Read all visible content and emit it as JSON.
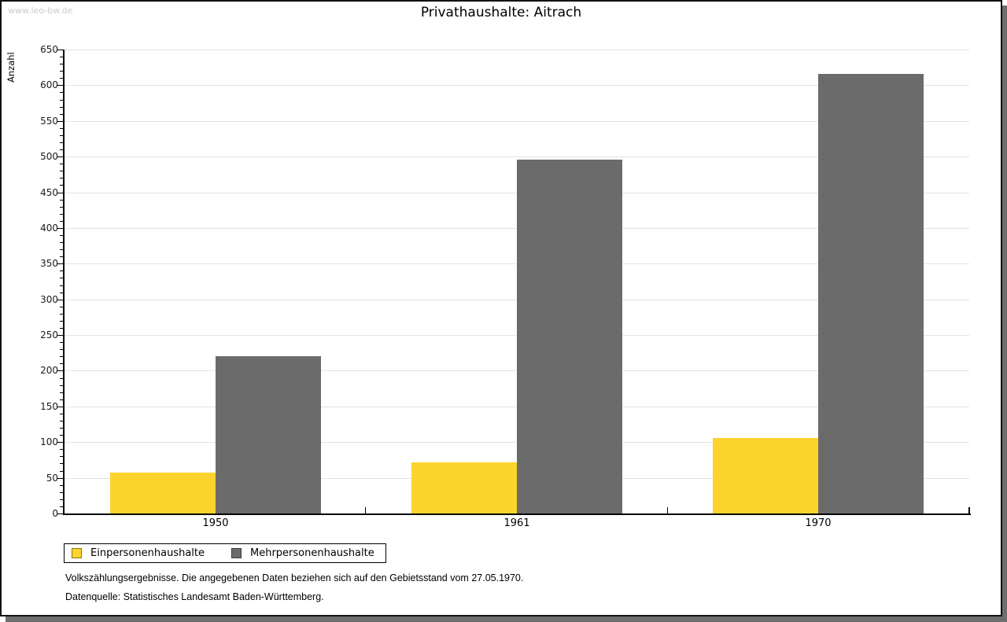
{
  "watermark": "www.leo-bw.de",
  "title": "Privathaushalte: Aitrach",
  "chart_data": {
    "type": "bar",
    "title": "Privathaushalte: Aitrach",
    "categories": [
      "1950",
      "1961",
      "1970"
    ],
    "series": [
      {
        "name": "Einpersonenhaushalte",
        "color": "#fdd32e",
        "swatch_border": "#857916",
        "values": [
          57,
          72,
          106
        ]
      },
      {
        "name": "Mehrpersonenhaushalte",
        "color": "#6b6b6b",
        "swatch_border": "#3c3c3c",
        "values": [
          220,
          496,
          616
        ]
      }
    ],
    "xlabel": "",
    "ylabel": "Anzahl",
    "ylim": [
      0,
      650
    ],
    "ytick_step": 50,
    "y_minor_tick_step": 10,
    "grid": true,
    "gridline_color": "#e3e3e3",
    "legend_position": "bottom-left"
  },
  "footnotes": [
    "Volkszählungsergebnisse. Die angegebenen Daten beziehen sich auf den Gebietsstand vom 27.05.1970.",
    "Datenquelle: Statistisches Landesamt Baden-Württemberg."
  ],
  "frame": {
    "border_color": "#111111",
    "shadow_color": "#6e6e6e"
  }
}
